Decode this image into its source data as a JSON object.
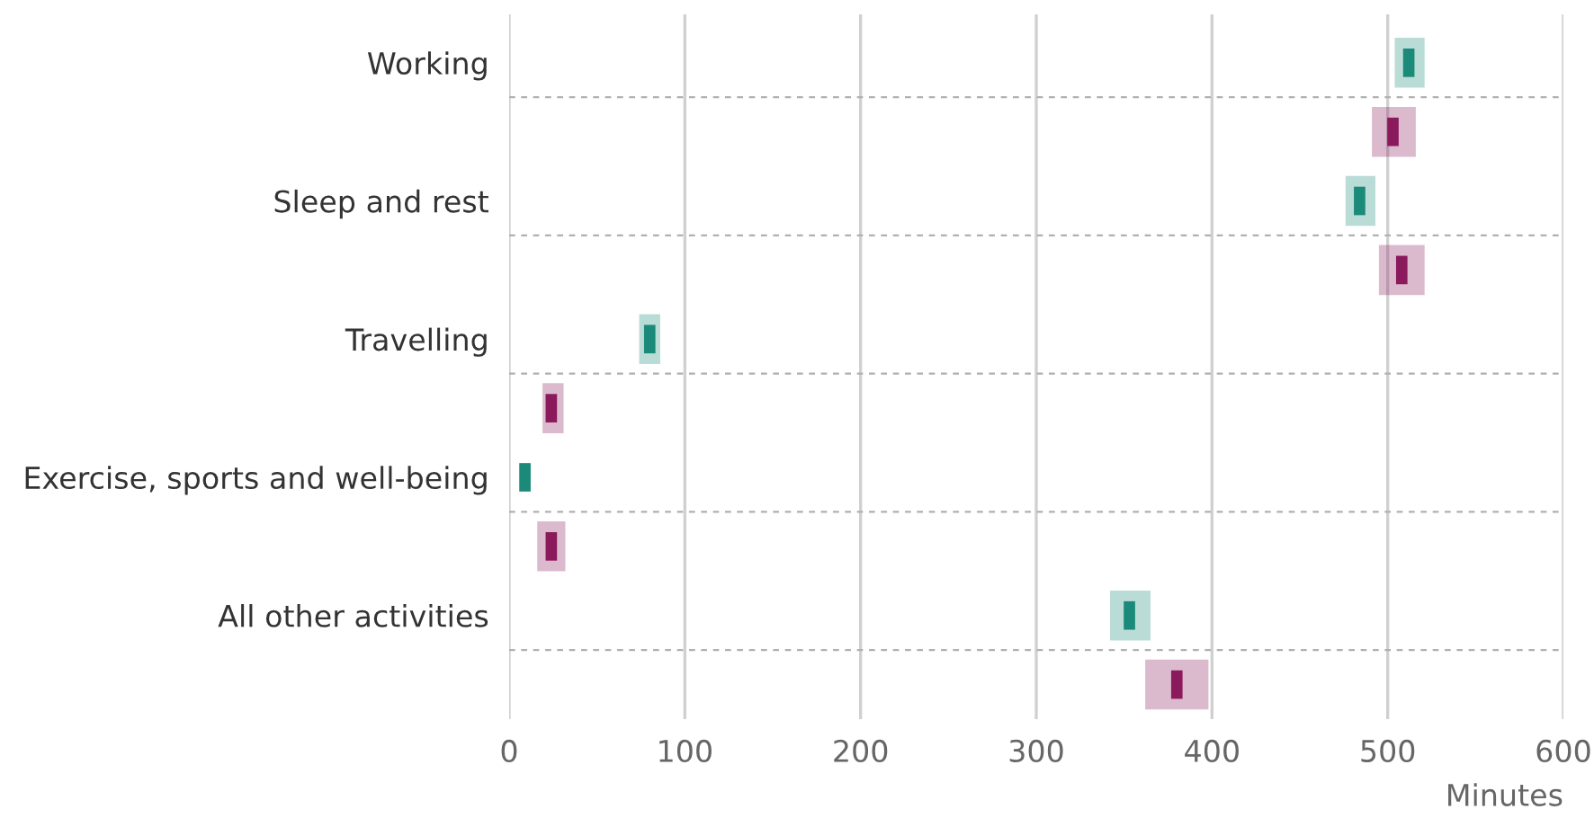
{
  "chart_data": {
    "type": "scatter",
    "orientation": "horizontal",
    "xlabel": "Minutes",
    "categories": [
      "Working",
      null,
      "Sleep and rest",
      null,
      "Travelling",
      null,
      "Exercise, sports and well-being",
      null,
      "All other activities",
      null
    ],
    "series": [
      {
        "color": "#1b8a78",
        "values": [
          512,
          null,
          484,
          null,
          80,
          null,
          9,
          null,
          353,
          null
        ],
        "errors": [
          [
            504,
            521
          ],
          null,
          [
            476,
            493
          ],
          null,
          [
            74,
            86
          ],
          null,
          null,
          null,
          [
            342,
            365
          ],
          null
        ]
      },
      {
        "color": "#8b1a5c",
        "values": [
          null,
          503,
          null,
          508,
          null,
          24,
          null,
          24,
          null,
          380
        ],
        "errors": [
          null,
          [
            491,
            516
          ],
          null,
          [
            495,
            521
          ],
          null,
          [
            19,
            31
          ],
          null,
          [
            16,
            32
          ],
          null,
          [
            362,
            398
          ]
        ]
      }
    ],
    "xlim": [
      0,
      600
    ],
    "xticks": [
      0,
      100,
      200,
      300,
      400,
      500,
      600
    ],
    "grid": true
  }
}
